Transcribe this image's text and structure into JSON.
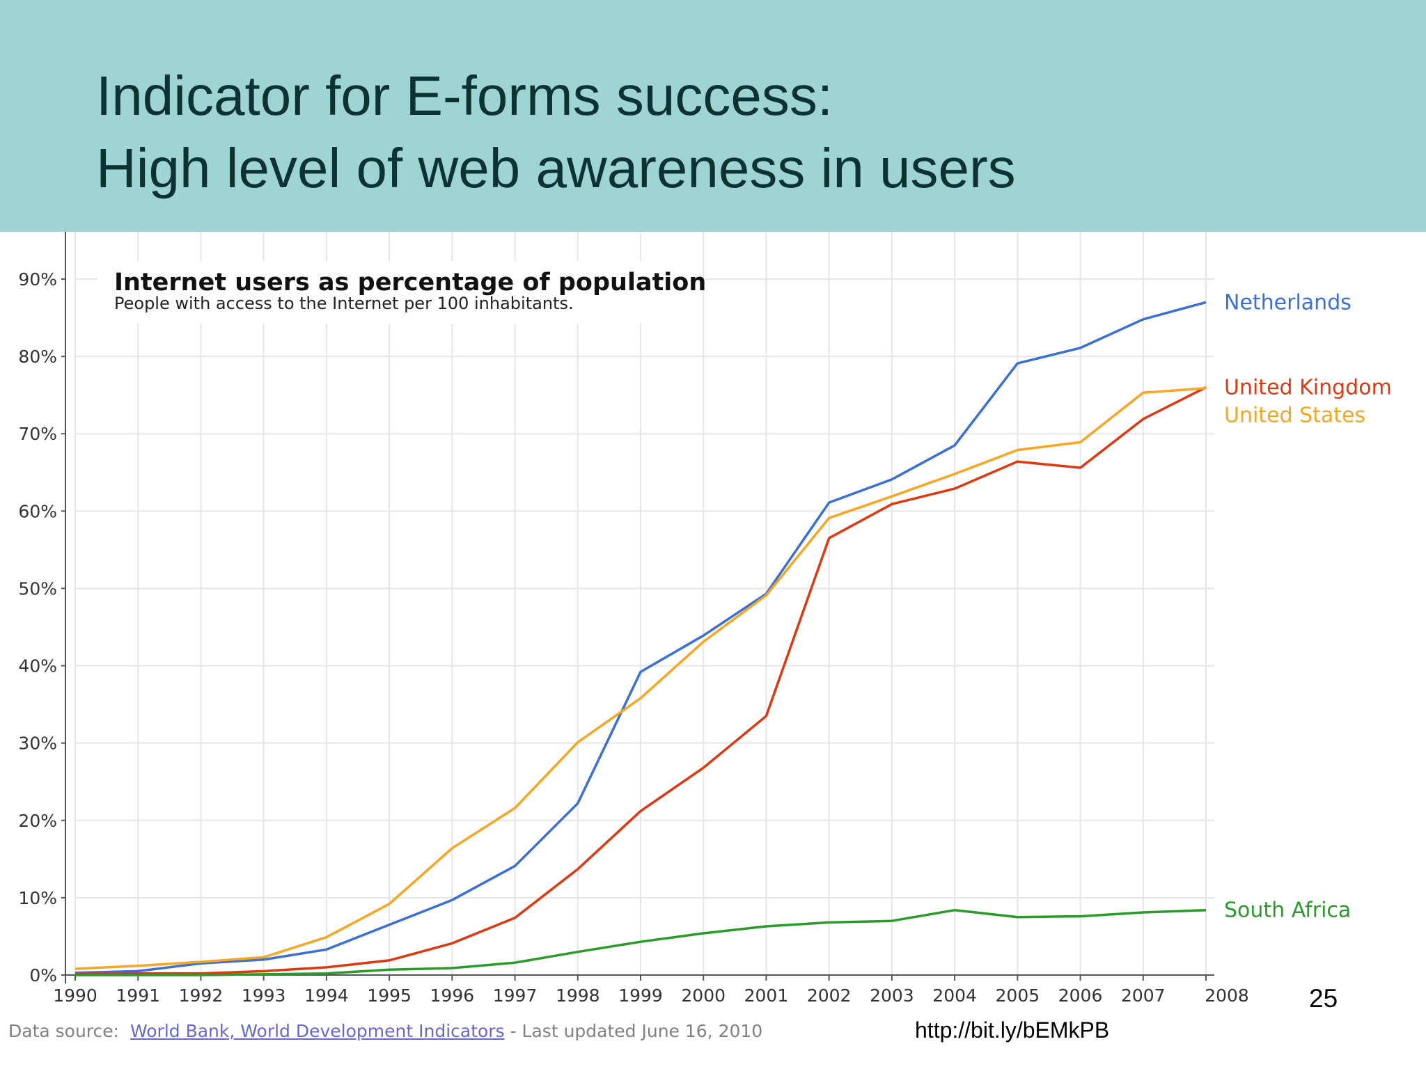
{
  "slide": {
    "title_line1": "Indicator for E-forms success:",
    "title_line2": "High level of web awareness in users",
    "page_number": "25",
    "short_url": "http://bit.ly/bEMkPB",
    "header_color": "#9fd4d4"
  },
  "footer": {
    "prefix": "Data source:",
    "link": "World Bank, World Development Indicators",
    "suffix": "- Last updated June 16, 2010"
  },
  "chart_data": {
    "type": "line",
    "title": "Internet users as percentage of population",
    "subtitle": "People with access to the Internet per 100 inhabitants.",
    "xlabel": "",
    "ylabel": "",
    "x": [
      1990,
      1991,
      1992,
      1993,
      1994,
      1995,
      1996,
      1997,
      1998,
      1999,
      2000,
      2001,
      2002,
      2003,
      2004,
      2005,
      2006,
      2007,
      2008
    ],
    "xticks": [
      "1990",
      "1991",
      "1992",
      "1993",
      "1994",
      "1995",
      "1996",
      "1997",
      "1998",
      "1999",
      "2000",
      "2001",
      "2002",
      "2003",
      "2004",
      "2005",
      "2006",
      "2007",
      "2008"
    ],
    "ylim": [
      0,
      90
    ],
    "yticks": [
      0,
      10,
      20,
      30,
      40,
      50,
      60,
      70,
      80,
      90
    ],
    "ytick_labels": [
      "0%",
      "10%",
      "20%",
      "30%",
      "40%",
      "50%",
      "60%",
      "70%",
      "80%",
      "90%"
    ],
    "grid": true,
    "legend": "right, labels at line ends",
    "series": [
      {
        "name": "Netherlands",
        "color": "#3b6fd1",
        "values": [
          0.3,
          0.5,
          1.5,
          2.0,
          3.3,
          6.5,
          9.7,
          14.1,
          22.2,
          39.2,
          43.9,
          49.3,
          61.1,
          64.1,
          68.5,
          79.1,
          81.1,
          84.8,
          87.0
        ]
      },
      {
        "name": "United Kingdom",
        "color": "#dc3912",
        "values": [
          0.1,
          0.2,
          0.2,
          0.5,
          1.0,
          1.9,
          4.1,
          7.4,
          13.7,
          21.2,
          26.8,
          33.5,
          56.5,
          60.9,
          62.9,
          66.4,
          65.6,
          71.9,
          76.0
        ]
      },
      {
        "name": "United States",
        "color": "#f5a623",
        "values": [
          0.8,
          1.2,
          1.7,
          2.3,
          4.9,
          9.2,
          16.4,
          21.6,
          30.1,
          35.8,
          43.1,
          49.1,
          59.1,
          61.9,
          64.8,
          67.9,
          68.9,
          75.3,
          75.9
        ]
      },
      {
        "name": "South Africa",
        "color": "#2a9a2a",
        "values": [
          0.0,
          0.0,
          0.0,
          0.1,
          0.2,
          0.7,
          0.9,
          1.6,
          3.0,
          4.3,
          5.4,
          6.3,
          6.8,
          7.0,
          8.4,
          7.5,
          7.6,
          8.1,
          8.4
        ]
      }
    ]
  }
}
